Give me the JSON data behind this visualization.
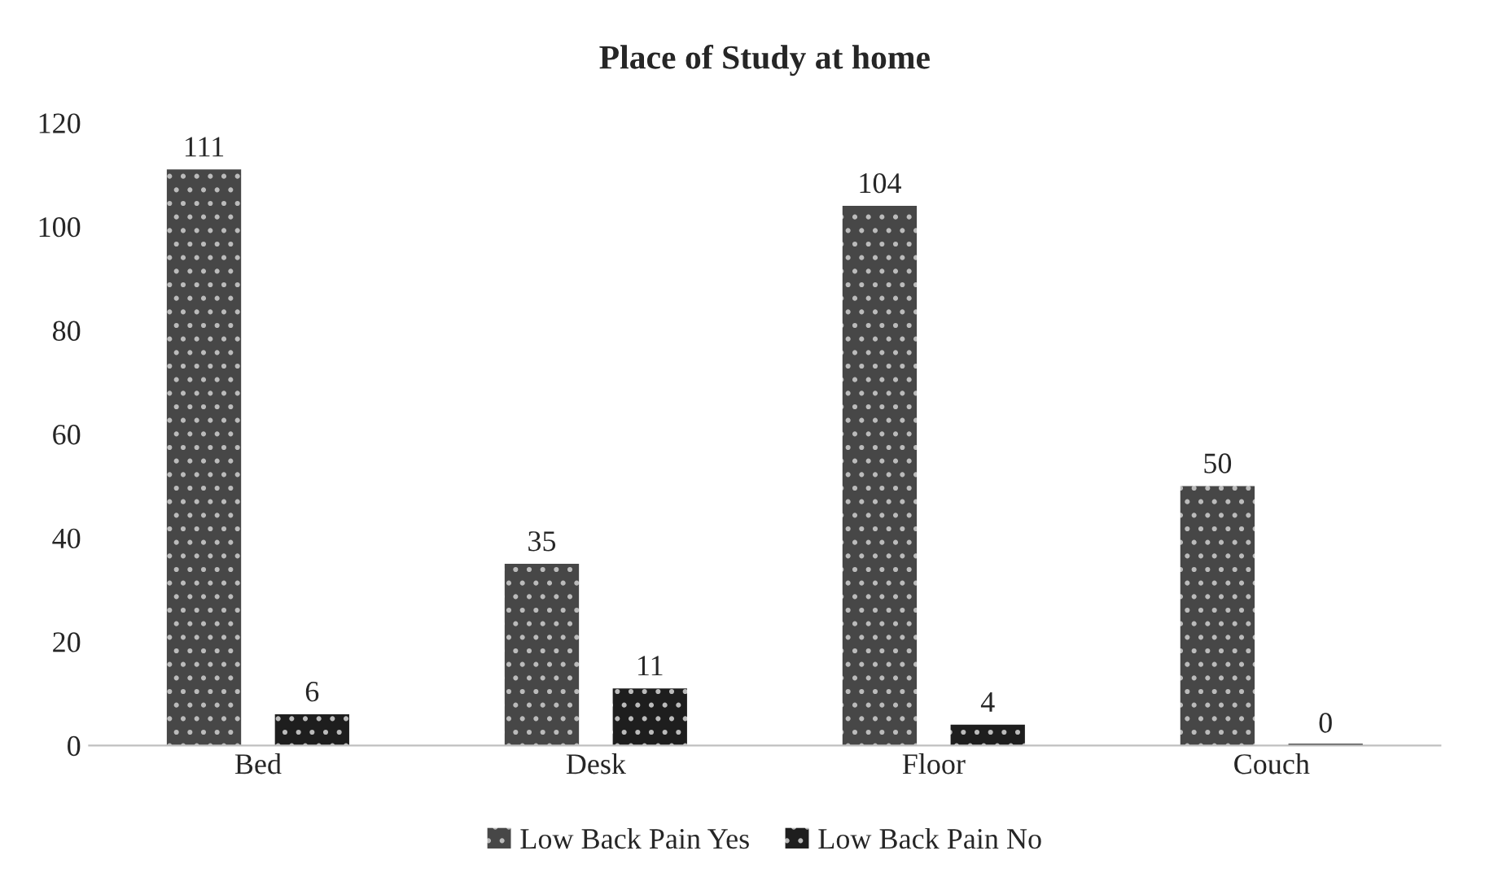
{
  "chart_data": {
    "type": "bar",
    "title": "Place of Study at home",
    "categories": [
      "Bed",
      "Desk",
      "Floor",
      "Couch"
    ],
    "series": [
      {
        "name": "Low Back Pain Yes",
        "color": "#474747",
        "values": [
          111,
          35,
          104,
          50
        ]
      },
      {
        "name": "Low Back Pain No",
        "color": "#1e1e1e",
        "values": [
          6,
          11,
          4,
          0
        ]
      }
    ],
    "ylim": [
      0,
      120
    ],
    "yticks": [
      0,
      20,
      40,
      60,
      80,
      100,
      120
    ],
    "grid": false,
    "legend": "bottom",
    "data_labels": true
  }
}
